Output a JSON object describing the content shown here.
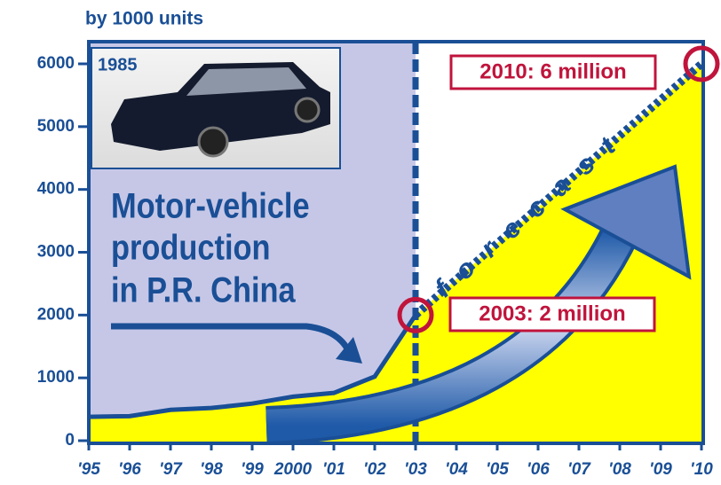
{
  "chart_data": {
    "type": "line",
    "y_label": "by 1000 units",
    "photo_label": "1985",
    "headline": [
      "Motor-vehicle",
      "production",
      "in P.R. China"
    ],
    "callouts": [
      "2010: 6 million",
      "2003: 2 million"
    ],
    "categories": [
      "'95",
      "'96",
      "'97",
      "'98",
      "'99",
      "2000",
      "'01",
      "'02",
      "'03",
      "'04",
      "'05",
      "'06",
      "'07",
      "'08",
      "'09",
      "'10"
    ],
    "series": [
      {
        "color": "#1a4f96",
        "values": [
          380,
          390,
          490,
          520,
          590,
          700,
          760,
          1020,
          2000,
          null,
          null,
          null,
          null,
          null,
          null,
          null
        ]
      },
      {
        "name": "forecast",
        "color": "#1a4f96",
        "dashed": true,
        "values": [
          null,
          null,
          null,
          null,
          null,
          null,
          null,
          null,
          2000,
          2571,
          3143,
          3714,
          4286,
          4857,
          5429,
          6000
        ]
      }
    ],
    "ylim": [
      0,
      6000
    ],
    "yticks": [
      0,
      1000,
      2000,
      3000,
      4000,
      5000,
      6000
    ]
  }
}
